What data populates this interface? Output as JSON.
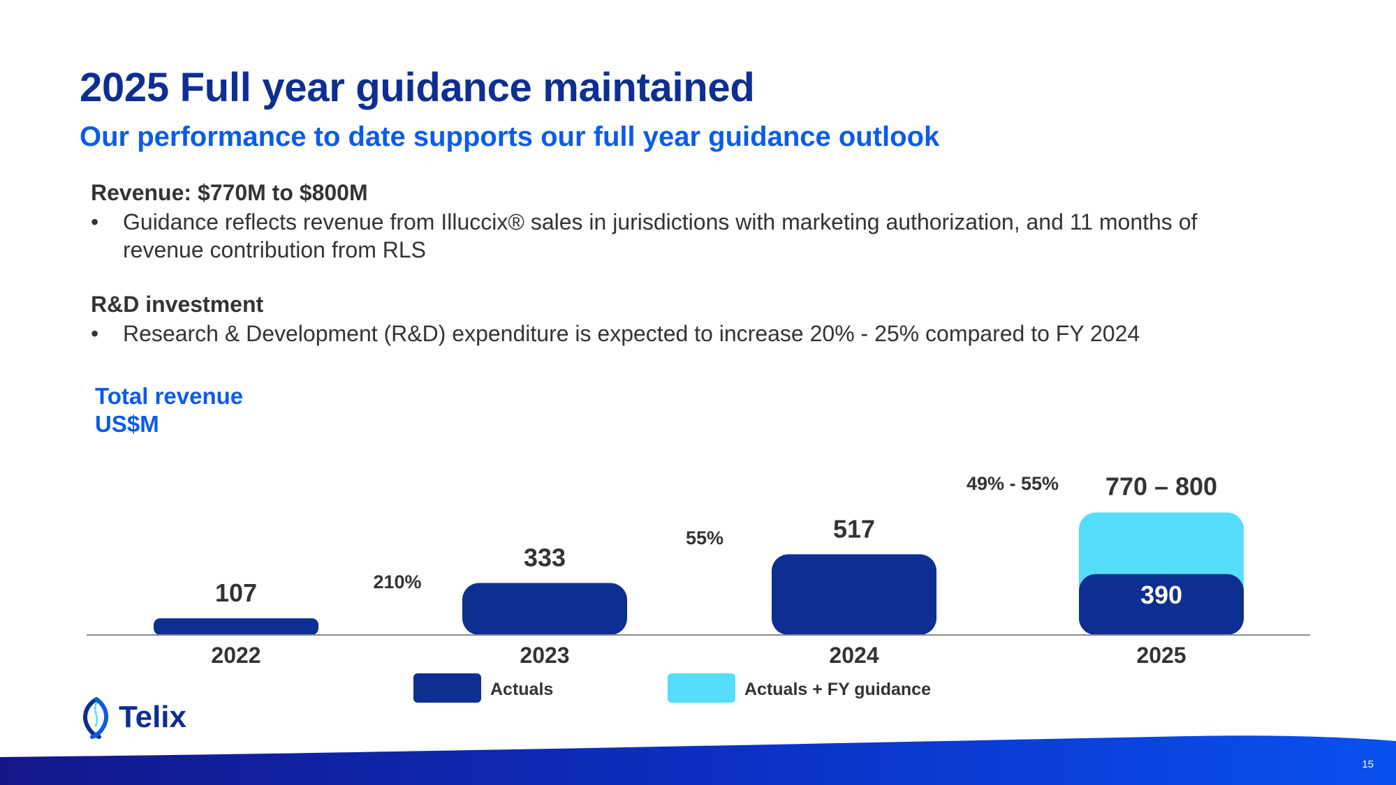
{
  "slide": {
    "title": "2025 Full year guidance maintained",
    "subtitle": "Our performance to date supports our full year guidance outlook",
    "page_number": "15"
  },
  "sections": {
    "revenue_heading": "Revenue: $770M to $800M",
    "revenue_bullet_line1": "Guidance reflects revenue from Illuccix® sales in jurisdictions with marketing authorization, and 11 months of",
    "revenue_bullet_line2": "revenue contribution from RLS",
    "rd_heading": "R&D investment",
    "rd_bullet": "Research & Development (R&D) expenditure is expected to increase 20% - 25% compared to FY 2024",
    "bullet_glyph": "•"
  },
  "chart_data": {
    "type": "bar",
    "title_line1": "Total revenue",
    "title_line2": "US$M",
    "categories": [
      "2022",
      "2023",
      "2024",
      "2025"
    ],
    "series": [
      {
        "name": "Actuals",
        "values": [
          107,
          333,
          517,
          390
        ],
        "color": "#0d2e93"
      },
      {
        "name": "Actuals + FY guidance",
        "values": [
          null,
          null,
          null,
          785
        ],
        "color": "#55ddfb"
      }
    ],
    "value_labels": [
      "107",
      "333",
      "517",
      "390"
    ],
    "guidance_label": "770 – 800",
    "growth_labels": [
      "210%",
      "55%",
      "49% - 55%"
    ],
    "ylim": [
      0,
      800
    ],
    "legend": [
      "Actuals",
      "Actuals + FY guidance"
    ]
  },
  "brand": {
    "logo_text": "Telix",
    "primary_color": "#0d2e93",
    "accent_color": "#0b5bea",
    "guidance_color": "#55ddfb"
  }
}
